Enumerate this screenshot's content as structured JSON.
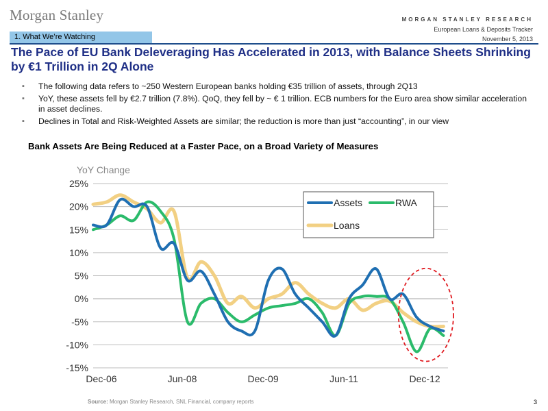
{
  "header": {
    "logo": "Morgan Stanley",
    "firm": "MORGAN STANLEY RESEARCH",
    "report": "European Loans & Deposits Tracker",
    "date": "November 5, 2013"
  },
  "section_tab": "1. What We’re Watching",
  "title": "The Pace of EU Bank Deleveraging Has Accelerated in 2013, with Balance Sheets Shrinking by €1 Trillion in 2Q Alone",
  "bullets": [
    "The following data refers to ~250 Western European banks holding €35 trillion of assets, through 2Q13",
    "YoY, these assets fell by €2.7 trillion (7.8%). QoQ, they fell by ~ € 1 trillion. ECB numbers for the Euro area show similar acceleration in asset declines.",
    "Declines in Total and Risk-Weighted Assets are similar; the reduction is more than just “accounting”, in our view"
  ],
  "footer": {
    "source_label": "Source:",
    "source_text": " Morgan Stanley Research, SNL Financial, company reports",
    "page": "3"
  },
  "colors": {
    "assets": "#1f6fb2",
    "rwa": "#2bbb6b",
    "loans": "#f2d083",
    "highlight": "#e0191f",
    "title": "#1f2f86"
  },
  "chart_data": {
    "type": "line",
    "title": "Bank Assets Are Being Reduced at a Faster Pace, on a Broad Variety of Measures",
    "ylabel": "YoY Change",
    "ylim": [
      -15,
      25
    ],
    "yticks": [
      25,
      20,
      15,
      10,
      5,
      0,
      -5,
      -10,
      -15
    ],
    "ytick_labels": [
      "25%",
      "20%",
      "15%",
      "10%",
      "5%",
      "0%",
      "-5%",
      "-10%",
      "-15%"
    ],
    "y_format": "percent",
    "xlim": [
      0,
      79
    ],
    "x_tick_positions": [
      0,
      18,
      36,
      54,
      72
    ],
    "x_tick_labels": [
      "Dec-06",
      "Jun-08",
      "Dec-09",
      "Jun-11",
      "Dec-12"
    ],
    "x_unit": "months since Dec-06",
    "grid": "horizontal",
    "legend_position": "top-right",
    "annotation": "red dashed ellipse highlighting 2013 declines",
    "highlight_region": {
      "x": [
        68,
        79
      ],
      "y": [
        -13,
        6
      ]
    },
    "series": [
      {
        "name": "Assets",
        "color": "#1f6fb2",
        "x": [
          0,
          3,
          6,
          9,
          12,
          15,
          18,
          21,
          24,
          27,
          30,
          33,
          36,
          39,
          42,
          45,
          48,
          51,
          54,
          57,
          60,
          63,
          66,
          69,
          72,
          75,
          78
        ],
        "y": [
          16,
          16,
          21.5,
          20,
          20,
          11,
          12,
          4,
          6,
          1,
          -5,
          -7,
          -7,
          4,
          6.5,
          1,
          -2,
          -5,
          -8,
          0,
          3,
          6.5,
          0,
          1,
          -4,
          -6,
          -7
        ]
      },
      {
        "name": "RWA",
        "color": "#2bbb6b",
        "x": [
          0,
          3,
          6,
          9,
          12,
          15,
          18,
          21,
          24,
          27,
          30,
          33,
          36,
          39,
          42,
          45,
          48,
          51,
          54,
          57,
          60,
          63,
          66,
          69,
          72,
          75,
          78
        ],
        "y": [
          15,
          16,
          18,
          17,
          21,
          19,
          13,
          -5,
          -1,
          0,
          -3,
          -5,
          -3.5,
          -2,
          -1.5,
          -1,
          0,
          -3,
          -8,
          -1,
          0.5,
          0.5,
          0,
          -5,
          -11.5,
          -6.5,
          -8
        ]
      },
      {
        "name": "Loans",
        "color": "#f2d083",
        "x": [
          0,
          3,
          6,
          9,
          12,
          15,
          18,
          21,
          24,
          27,
          30,
          33,
          36,
          39,
          42,
          45,
          48,
          51,
          54,
          57,
          60,
          63,
          66,
          69,
          72,
          75,
          78
        ],
        "y": [
          20.5,
          21,
          22.5,
          21,
          19.5,
          16.5,
          19,
          4.5,
          8,
          5,
          -1,
          0.5,
          -2,
          0,
          1,
          3.5,
          1,
          -1,
          -2,
          0,
          -2.5,
          -1,
          -0.5,
          -3,
          -5,
          -6,
          -6
        ]
      }
    ]
  }
}
